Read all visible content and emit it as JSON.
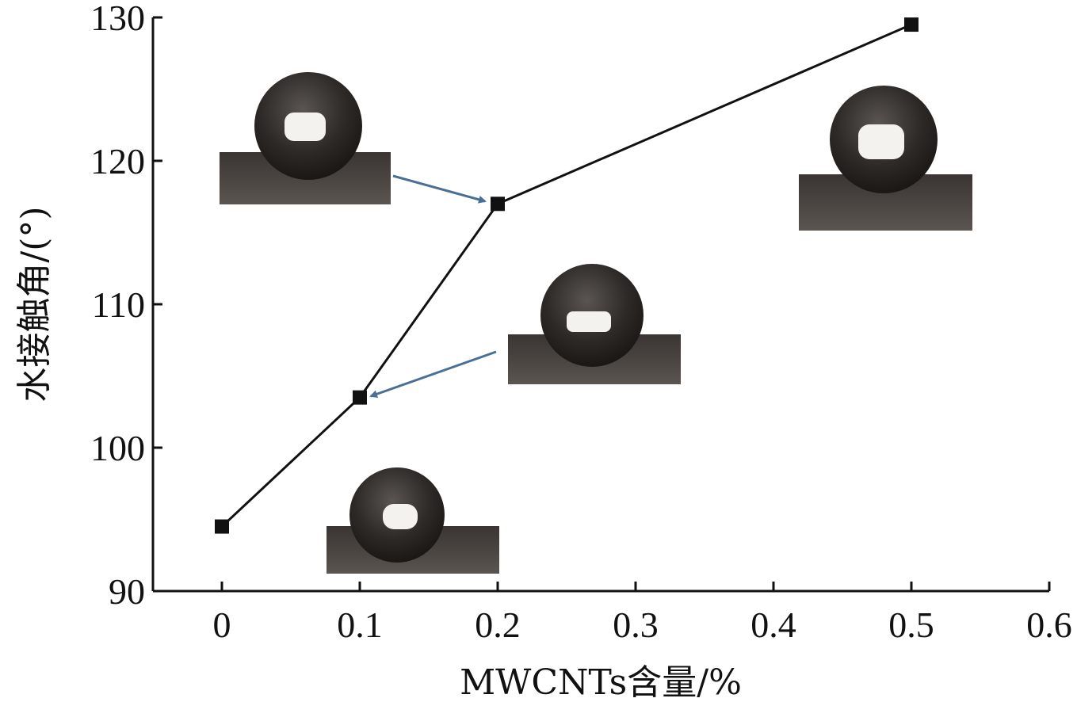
{
  "chart_data": {
    "type": "line",
    "xlabel": "MWCNTs含量/%",
    "ylabel": "水接触角/(°)",
    "xlim": [
      -0.05,
      0.6
    ],
    "ylim": [
      90,
      130
    ],
    "xticks": [
      "0",
      "0.1",
      "0.2",
      "0.3",
      "0.4",
      "0.5",
      "0.6"
    ],
    "yticks": [
      "90",
      "100",
      "110",
      "120",
      "130"
    ],
    "grid": false,
    "series": [
      {
        "marker": "square",
        "color": "#111111",
        "points": [
          {
            "x": 0,
            "y": 94.5
          },
          {
            "x": 0.1,
            "y": 103.5
          },
          {
            "x": 0.2,
            "y": 117
          },
          {
            "x": 0.5,
            "y": 129.5
          }
        ]
      }
    ],
    "insets": [
      {
        "kind": "water-droplet-photo",
        "points_to_x": 0.2
      },
      {
        "kind": "water-droplet-photo",
        "points_to_x": 0.1
      },
      {
        "kind": "water-droplet-photo",
        "near_x": 0
      },
      {
        "kind": "water-droplet-photo",
        "near_x": 0.5
      }
    ],
    "arrow_color": "#4a6f96"
  }
}
